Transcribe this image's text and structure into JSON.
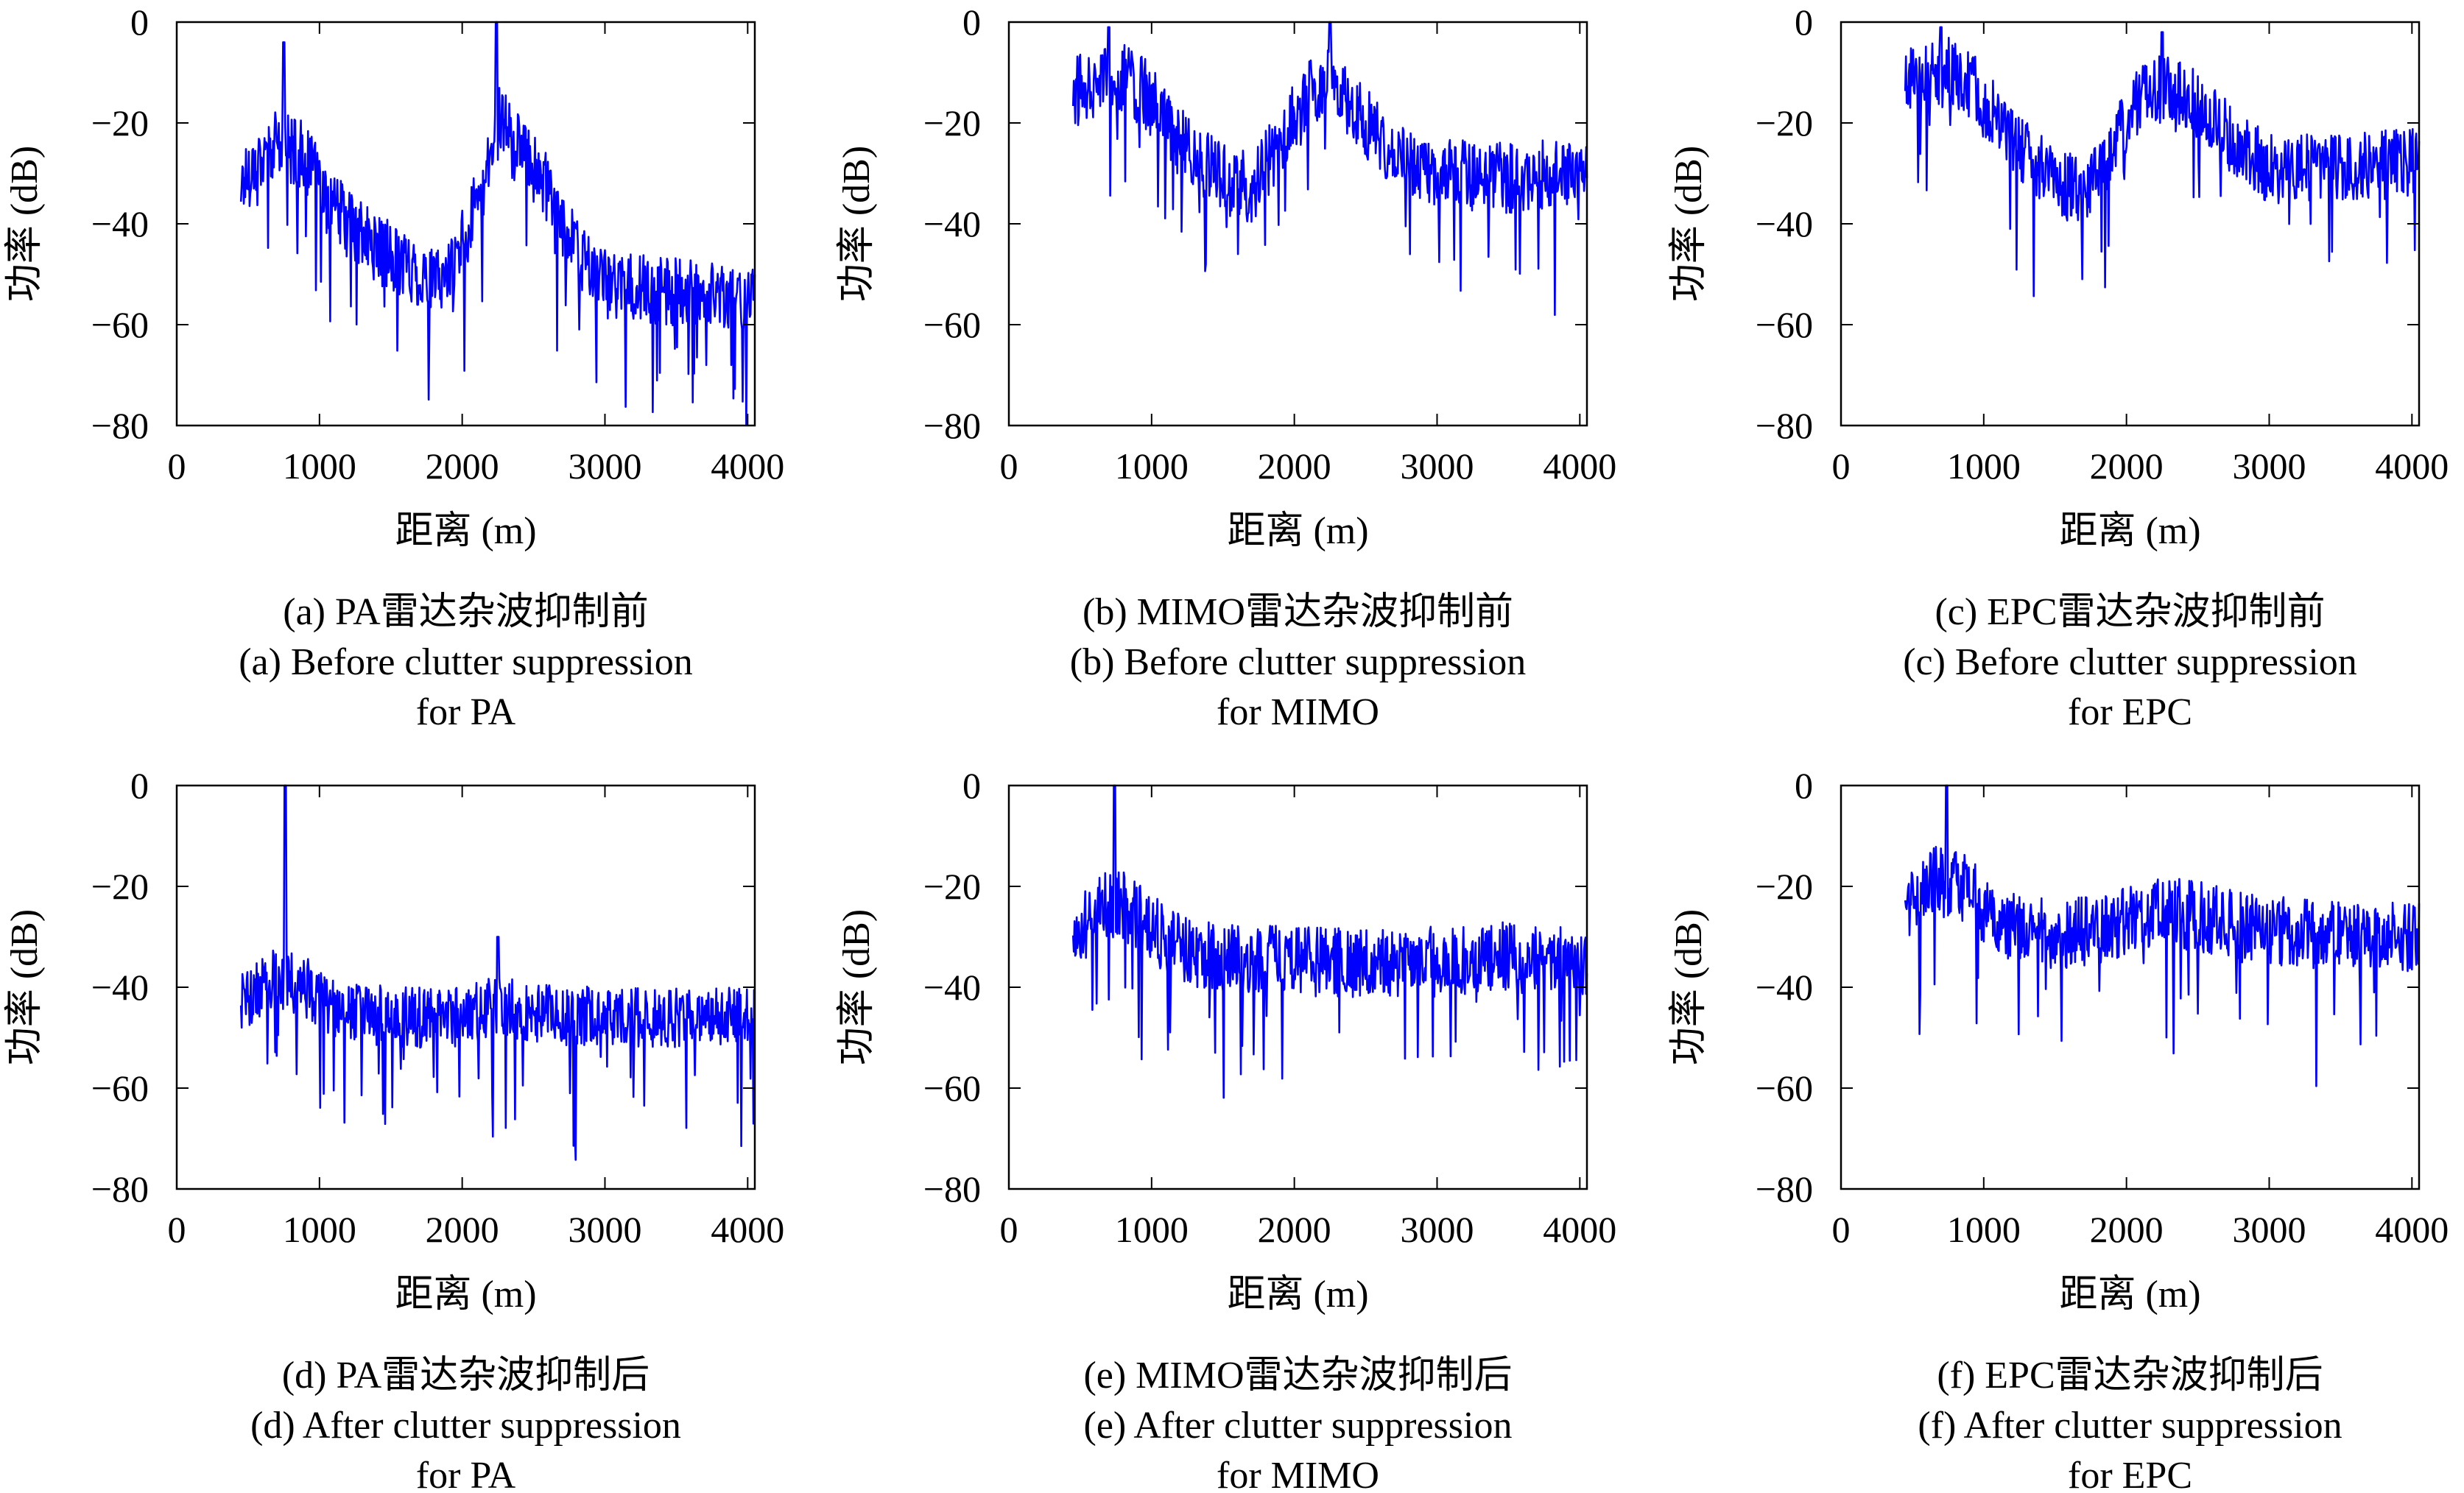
{
  "chart_data": [
    {
      "id": "a",
      "type": "line",
      "xlabel": "距离 (m)",
      "ylabel": "功率 (dB)",
      "xlim": [
        0,
        4050
      ],
      "ylim": [
        -80,
        0
      ],
      "xticks": [
        "0",
        "1000",
        "2000",
        "3000",
        "4000"
      ],
      "yticks": [
        "0",
        "−20",
        "−40",
        "−60",
        "−80"
      ],
      "caption": [
        "(a) PA雷达杂波抑制前",
        "(a) Before clutter suppression",
        "for PA"
      ],
      "line_color": "#0000ff",
      "series": [
        {
          "x_range": [
            450,
            4050
          ],
          "envelope": [
            [
              450,
              -32
            ],
            [
              600,
              -26
            ],
            [
              750,
              -24
            ],
            [
              900,
              -27
            ],
            [
              1050,
              -35
            ],
            [
              1200,
              -40
            ],
            [
              1400,
              -45
            ],
            [
              1600,
              -48
            ],
            [
              1800,
              -52
            ],
            [
              1950,
              -48
            ],
            [
              2100,
              -36
            ],
            [
              2200,
              -28
            ],
            [
              2250,
              -16
            ],
            [
              2350,
              -24
            ],
            [
              2450,
              -27
            ],
            [
              2600,
              -33
            ],
            [
              2800,
              -46
            ],
            [
              3000,
              -52
            ],
            [
              3300,
              -53
            ],
            [
              3600,
              -54
            ],
            [
              4050,
              -54
            ]
          ],
          "peaks": [
            [
              750,
              -4
            ],
            [
              2240,
              0
            ]
          ],
          "noise": 7
        }
      ]
    },
    {
      "id": "b",
      "type": "line",
      "xlabel": "距离 (m)",
      "ylabel": "功率 (dB)",
      "xlim": [
        0,
        4050
      ],
      "ylim": [
        -80,
        0
      ],
      "xticks": [
        "0",
        "1000",
        "2000",
        "3000",
        "4000"
      ],
      "yticks": [
        "0",
        "−20",
        "−40",
        "−60",
        "−80"
      ],
      "caption": [
        "(b) MIMO雷达杂波抑制前",
        "(b) Before clutter suppression",
        "for MIMO"
      ],
      "line_color": "#0000ff",
      "series": [
        {
          "x_range": [
            450,
            4050
          ],
          "envelope": [
            [
              450,
              -14
            ],
            [
              600,
              -12
            ],
            [
              750,
              -10
            ],
            [
              950,
              -14
            ],
            [
              1200,
              -24
            ],
            [
              1500,
              -31
            ],
            [
              1700,
              -33
            ],
            [
              1900,
              -24
            ],
            [
              2100,
              -14
            ],
            [
              2250,
              -12
            ],
            [
              2450,
              -18
            ],
            [
              2700,
              -27
            ],
            [
              3000,
              -30
            ],
            [
              3500,
              -31
            ],
            [
              4050,
              -29
            ]
          ],
          "peaks": [
            [
              700,
              -1
            ],
            [
              2250,
              0
            ]
          ],
          "noise": 7
        }
      ]
    },
    {
      "id": "c",
      "type": "line",
      "xlabel": "距离 (m)",
      "ylabel": "功率 (dB)",
      "xlim": [
        0,
        4050
      ],
      "ylim": [
        -80,
        0
      ],
      "xticks": [
        "0",
        "1000",
        "2000",
        "3000",
        "4000"
      ],
      "yticks": [
        "0",
        "−20",
        "−40",
        "−60",
        "−80"
      ],
      "caption": [
        "(c) EPC雷达杂波抑制前",
        "(c) Before clutter suppression",
        "for EPC"
      ],
      "line_color": "#0000ff",
      "series": [
        {
          "x_range": [
            450,
            4050
          ],
          "envelope": [
            [
              450,
              -12
            ],
            [
              600,
              -11
            ],
            [
              750,
              -10
            ],
            [
              950,
              -14
            ],
            [
              1200,
              -24
            ],
            [
              1500,
              -32
            ],
            [
              1700,
              -33
            ],
            [
              1900,
              -25
            ],
            [
              2100,
              -15
            ],
            [
              2250,
              -12
            ],
            [
              2500,
              -16
            ],
            [
              2750,
              -24
            ],
            [
              3000,
              -29
            ],
            [
              3500,
              -29
            ],
            [
              4050,
              -28
            ]
          ],
          "peaks": [
            [
              700,
              -1
            ],
            [
              2250,
              -2
            ]
          ],
          "noise": 7
        }
      ]
    },
    {
      "id": "d",
      "type": "line",
      "xlabel": "距离 (m)",
      "ylabel": "功率 (dB)",
      "xlim": [
        0,
        4050
      ],
      "ylim": [
        -80,
        0
      ],
      "xticks": [
        "0",
        "1000",
        "2000",
        "3000",
        "4000"
      ],
      "yticks": [
        "0",
        "−20",
        "−40",
        "−60",
        "−80"
      ],
      "caption": [
        "(d) PA雷达杂波抑制后",
        "(d) After clutter suppression",
        "for PA"
      ],
      "line_color": "#0000ff",
      "series": [
        {
          "x_range": [
            450,
            4050
          ],
          "envelope": [
            [
              450,
              -43
            ],
            [
              700,
              -38
            ],
            [
              900,
              -40
            ],
            [
              1100,
              -44
            ],
            [
              1500,
              -46
            ],
            [
              2000,
              -46
            ],
            [
              2250,
              -43
            ],
            [
              2400,
              -45
            ],
            [
              3000,
              -46
            ],
            [
              3500,
              -46
            ],
            [
              4050,
              -46
            ]
          ],
          "peaks": [
            [
              760,
              0
            ],
            [
              2250,
              -30
            ]
          ],
          "noise": 6
        }
      ]
    },
    {
      "id": "e",
      "type": "line",
      "xlabel": "距离 (m)",
      "ylabel": "功率 (dB)",
      "xlim": [
        0,
        4050
      ],
      "ylim": [
        -80,
        0
      ],
      "xticks": [
        "0",
        "1000",
        "2000",
        "3000",
        "4000"
      ],
      "yticks": [
        "0",
        "−20",
        "−40",
        "−60",
        "−80"
      ],
      "caption": [
        "(e) MIMO雷达杂波抑制后",
        "(e) After clutter suppression",
        "for MIMO"
      ],
      "line_color": "#0000ff",
      "series": [
        {
          "x_range": [
            450,
            4050
          ],
          "envelope": [
            [
              450,
              -30
            ],
            [
              650,
              -24
            ],
            [
              850,
              -24
            ],
            [
              1100,
              -31
            ],
            [
              1400,
              -34
            ],
            [
              2000,
              -35
            ],
            [
              2500,
              -35
            ],
            [
              3000,
              -35
            ],
            [
              3500,
              -34
            ],
            [
              4050,
              -35
            ]
          ],
          "peaks": [
            [
              740,
              0
            ]
          ],
          "noise": 7
        }
      ]
    },
    {
      "id": "f",
      "type": "line",
      "xlabel": "距离 (m)",
      "ylabel": "功率 (dB)",
      "xlim": [
        0,
        4050
      ],
      "ylim": [
        -80,
        0
      ],
      "xticks": [
        "0",
        "1000",
        "2000",
        "3000",
        "4000"
      ],
      "yticks": [
        "0",
        "−20",
        "−40",
        "−60",
        "−80"
      ],
      "caption": [
        "(f) EPC雷达杂波抑制后",
        "(f) After clutter suppression",
        "for EPC"
      ],
      "line_color": "#0000ff",
      "series": [
        {
          "x_range": [
            450,
            4050
          ],
          "envelope": [
            [
              450,
              -24
            ],
            [
              650,
              -19
            ],
            [
              850,
              -20
            ],
            [
              1100,
              -27
            ],
            [
              1500,
              -30
            ],
            [
              1900,
              -28
            ],
            [
              2300,
              -25
            ],
            [
              2700,
              -27
            ],
            [
              3100,
              -29
            ],
            [
              3500,
              -30
            ],
            [
              4050,
              -30
            ]
          ],
          "peaks": [
            [
              740,
              0
            ]
          ],
          "noise": 7
        }
      ]
    }
  ]
}
